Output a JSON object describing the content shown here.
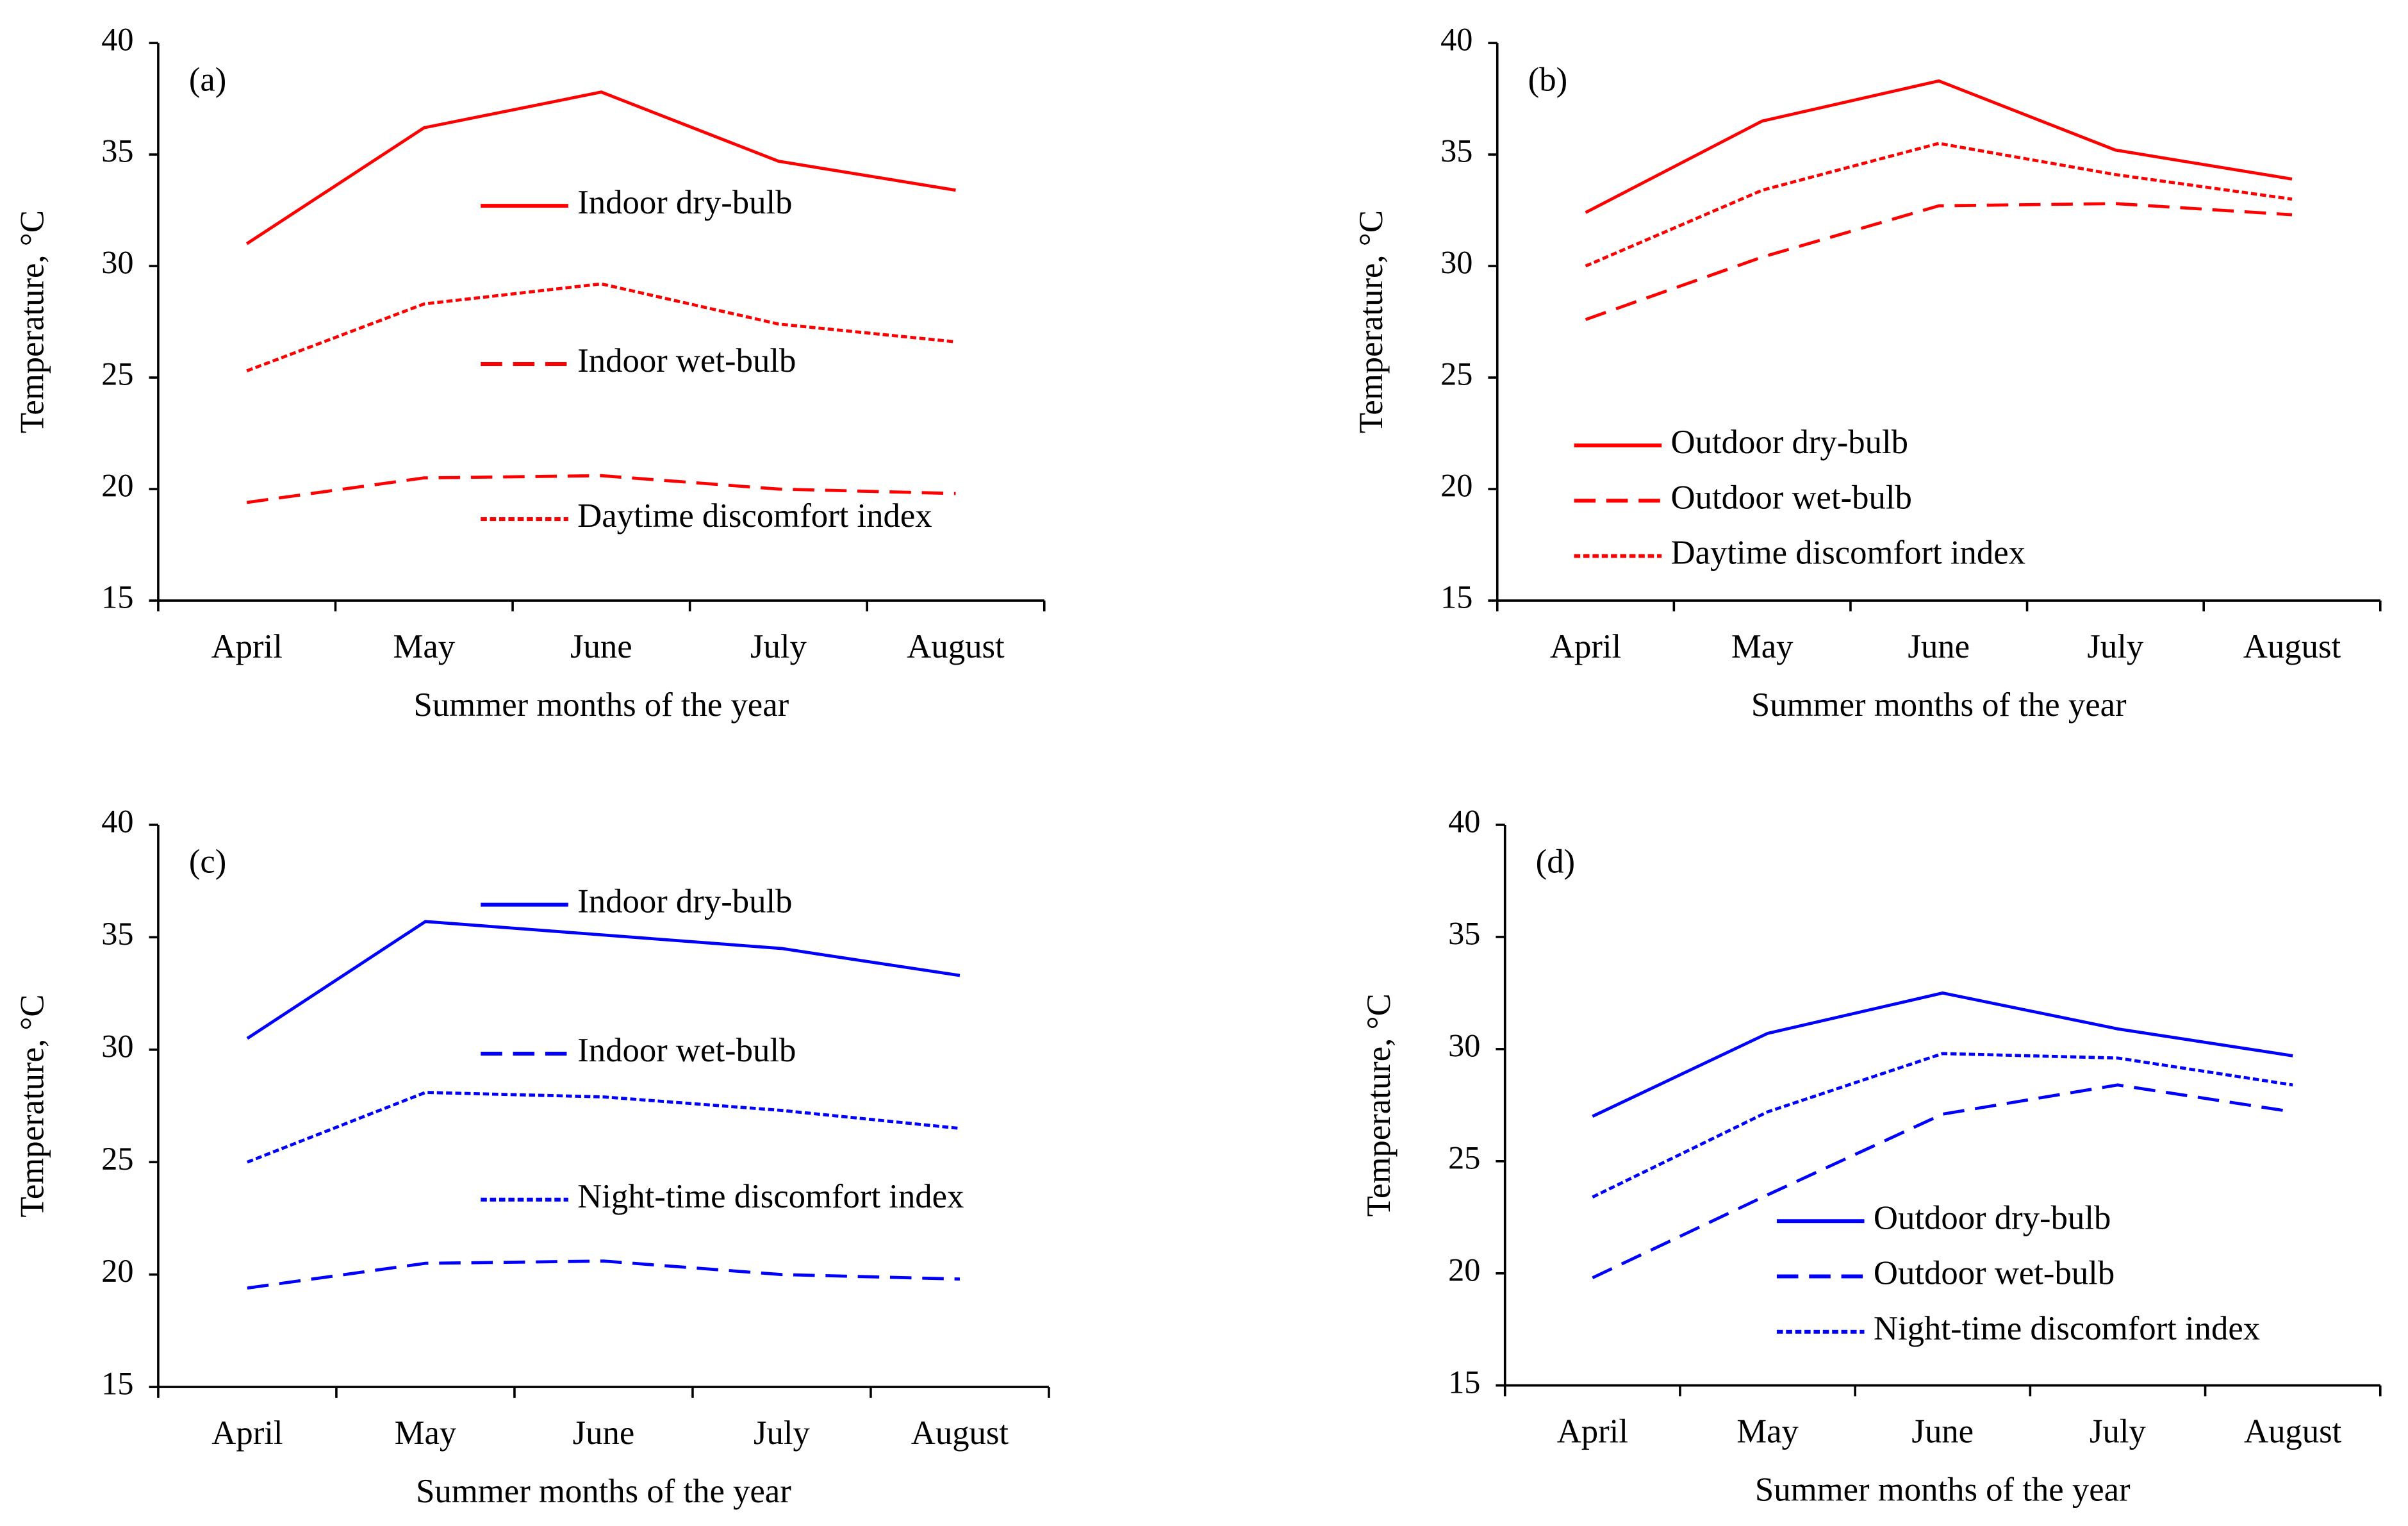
{
  "chart_data": [
    {
      "type": "line",
      "panel": "(a)",
      "ylabel": "Temperature, °C",
      "xlabel": "Summer months of the year",
      "categories": [
        "April",
        "May",
        "June",
        "July",
        "August"
      ],
      "ylim": [
        15,
        40
      ],
      "yticks": [
        15,
        20,
        25,
        30,
        35,
        40
      ],
      "series": [
        {
          "name": "Indoor dry-bulb",
          "color": "#ff0000",
          "linestyle": "solid",
          "values": [
            31.0,
            36.2,
            37.8,
            34.7,
            33.4
          ]
        },
        {
          "name": "Indoor wet-bulb",
          "color": "#ff0000",
          "linestyle": "dashed",
          "values": [
            19.4,
            20.5,
            20.6,
            20.0,
            19.8
          ]
        },
        {
          "name": "Daytime discomfort index",
          "color": "#ff0000",
          "linestyle": "dotted",
          "values": [
            25.3,
            28.3,
            29.2,
            27.4,
            26.6
          ]
        }
      ]
    },
    {
      "type": "line",
      "panel": "(b)",
      "ylabel": "Temperature, °C",
      "xlabel": "Summer months of the year",
      "categories": [
        "April",
        "May",
        "June",
        "July",
        "August"
      ],
      "ylim": [
        15,
        40
      ],
      "yticks": [
        15,
        20,
        25,
        30,
        35,
        40
      ],
      "series": [
        {
          "name": "Outdoor dry-bulb",
          "color": "#ff0000",
          "linestyle": "solid",
          "values": [
            32.4,
            36.5,
            38.3,
            35.2,
            33.9
          ]
        },
        {
          "name": "Outdoor wet-bulb",
          "color": "#ff0000",
          "linestyle": "dashed",
          "values": [
            27.6,
            30.4,
            32.7,
            32.8,
            32.3
          ]
        },
        {
          "name": "Daytime discomfort index",
          "color": "#ff0000",
          "linestyle": "dotted",
          "values": [
            30.0,
            33.4,
            35.5,
            34.1,
            33.0
          ]
        }
      ]
    },
    {
      "type": "line",
      "panel": "(c)",
      "ylabel": "Temperature, °C",
      "xlabel": "Summer months of the year",
      "categories": [
        "April",
        "May",
        "June",
        "July",
        "August"
      ],
      "ylim": [
        15,
        40
      ],
      "yticks": [
        15,
        20,
        25,
        30,
        35,
        40
      ],
      "series": [
        {
          "name": "Indoor dry-bulb",
          "color": "#0000ff",
          "linestyle": "solid",
          "values": [
            30.5,
            35.7,
            35.1,
            34.5,
            33.3
          ]
        },
        {
          "name": "Indoor wet-bulb",
          "color": "#0000ff",
          "linestyle": "dashed",
          "values": [
            19.4,
            20.5,
            20.6,
            20.0,
            19.8
          ]
        },
        {
          "name": "Night-time discomfort index",
          "color": "#0000ff",
          "linestyle": "dotted",
          "values": [
            25.0,
            28.1,
            27.9,
            27.3,
            26.5
          ]
        }
      ]
    },
    {
      "type": "line",
      "panel": "(d)",
      "ylabel": "Temperature, °C",
      "xlabel": "Summer months of the year",
      "categories": [
        "April",
        "May",
        "June",
        "July",
        "August"
      ],
      "ylim": [
        15,
        40
      ],
      "yticks": [
        15,
        20,
        25,
        30,
        35,
        40
      ],
      "series": [
        {
          "name": "Outdoor dry-bulb",
          "color": "#0000ff",
          "linestyle": "solid",
          "values": [
            27.0,
            30.7,
            32.5,
            30.9,
            29.7
          ]
        },
        {
          "name": "Outdoor wet-bulb",
          "color": "#0000ff",
          "linestyle": "dashed",
          "values": [
            19.8,
            23.5,
            27.1,
            28.4,
            27.2
          ]
        },
        {
          "name": "Night-time discomfort index",
          "color": "#0000ff",
          "linestyle": "dotted",
          "values": [
            23.4,
            27.2,
            29.8,
            29.6,
            28.4
          ]
        }
      ]
    }
  ]
}
